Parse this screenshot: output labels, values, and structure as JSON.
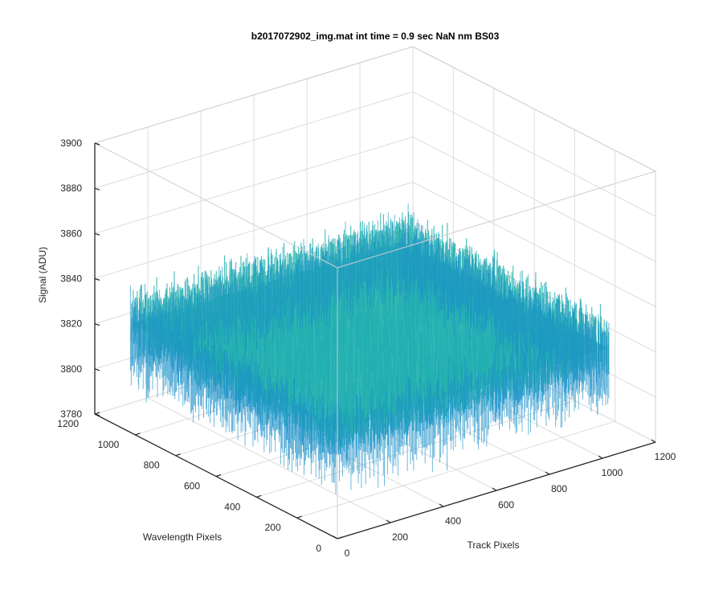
{
  "chart_data": {
    "type": "surface",
    "title": "b2017072902_img.mat int time = 0.9 sec  NaN nm BS03",
    "xlabel": "Track Pixels",
    "ylabel": "Wavelength Pixels",
    "zlabel": "Signal (ADU)",
    "xlim": [
      0,
      1200
    ],
    "ylim": [
      0,
      1200
    ],
    "zlim": [
      3780,
      3900
    ],
    "x_ticks": [
      "0",
      "200",
      "400",
      "600",
      "800",
      "1000",
      "1200"
    ],
    "y_ticks": [
      "0",
      "200",
      "400",
      "600",
      "800",
      "1000",
      "1200"
    ],
    "z_ticks": [
      "3780",
      "3800",
      "3820",
      "3840",
      "3860",
      "3880",
      "3900"
    ],
    "data_extent": {
      "x": [
        0,
        1024
      ],
      "y": [
        0,
        1024
      ]
    },
    "signal_mean": 3828,
    "signal_range": [
      3795,
      3885
    ],
    "grid": true,
    "colormap": [
      "#0072BD",
      "#1E96D2",
      "#20B2AA",
      "#5AC8A0",
      "#A0C878",
      "#E6D250"
    ]
  }
}
